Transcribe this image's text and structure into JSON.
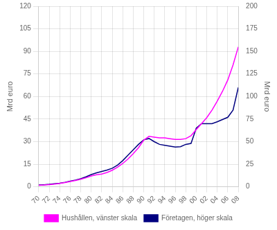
{
  "chart_data": {
    "type": "line",
    "x": [
      70,
      71,
      72,
      73,
      74,
      75,
      76,
      77,
      78,
      79,
      80,
      81,
      82,
      83,
      84,
      85,
      86,
      87,
      88,
      89,
      90,
      91,
      92,
      93,
      94,
      95,
      96,
      97,
      98,
      99,
      100,
      101,
      102,
      103,
      104,
      105,
      106,
      107,
      108
    ],
    "series": [
      {
        "name": "Hushållen, vänster skala",
        "color": "#FF00FF",
        "axis": "y",
        "values": [
          1.0,
          1.2,
          1.5,
          1.8,
          2.2,
          2.8,
          3.5,
          4.2,
          5.0,
          6.0,
          7.2,
          8.0,
          8.5,
          9.5,
          11.0,
          13.0,
          15.5,
          18.5,
          22.0,
          26.0,
          31.0,
          33.5,
          33.0,
          32.5,
          32.5,
          32.0,
          31.5,
          31.5,
          32.0,
          34.0,
          38.0,
          42.0,
          46.0,
          51.0,
          57.0,
          63.5,
          71.0,
          81.0,
          93.0
        ]
      },
      {
        "name": "Företagen, höger skala",
        "color": "#000080",
        "axis": "y2",
        "values": [
          2.0,
          2.3,
          2.7,
          3.3,
          4.0,
          5.0,
          6.2,
          7.5,
          9.0,
          11.0,
          13.5,
          15.5,
          17.0,
          18.5,
          20.5,
          24.0,
          29.0,
          35.0,
          41.0,
          47.0,
          52.0,
          53.5,
          50.0,
          47.0,
          46.0,
          45.0,
          44.0,
          44.5,
          47.0,
          48.0,
          65.0,
          70.0,
          70.0,
          70.0,
          72.0,
          74.5,
          77.0,
          85.0,
          110.0
        ]
      }
    ],
    "ylabel": "Mrd euro",
    "y2label": "Mrd euro",
    "xlim": [
      70,
      108
    ],
    "xticks": [
      70,
      72,
      74,
      76,
      78,
      80,
      82,
      84,
      86,
      88,
      90,
      92,
      94,
      96,
      98,
      {
        "value": 100,
        "label": "00"
      },
      {
        "value": 102,
        "label": "02"
      },
      {
        "value": 104,
        "label": "04"
      },
      {
        "value": 106,
        "label": "06"
      },
      {
        "value": 108,
        "label": "08"
      }
    ],
    "ylim": [
      0,
      120
    ],
    "yticks": [
      0,
      15,
      30,
      45,
      60,
      75,
      90,
      105,
      120
    ],
    "y2lim": [
      0,
      200
    ],
    "y2ticks": [
      0,
      25,
      50,
      75,
      100,
      125,
      150,
      175,
      200
    ],
    "grid": true,
    "legend": "bottom"
  }
}
